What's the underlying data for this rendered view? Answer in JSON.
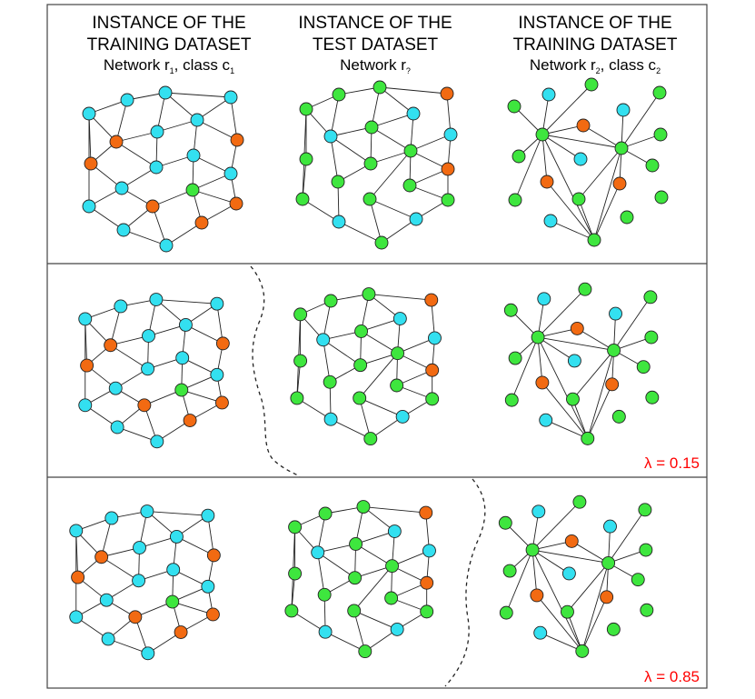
{
  "colors": {
    "cyan": "#33e0f0",
    "orange": "#f26a12",
    "green": "#3ee63e",
    "lambda_text": "#ff0000"
  },
  "headers": [
    {
      "line1": "INSTANCE OF THE",
      "line2": "TRAINING DATASET",
      "line3": "Network r",
      "sub1": "1",
      "mid": ", class c",
      "sub2": "1"
    },
    {
      "line1": "INSTANCE OF THE",
      "line2": "TEST DATASET",
      "line3": "Network r",
      "sub1": "?",
      "mid": "",
      "sub2": ""
    },
    {
      "line1": "INSTANCE OF THE",
      "line2": "TRAINING DATASET",
      "line3": "Network r",
      "sub1": "2",
      "mid": ", class c",
      "sub2": "2"
    }
  ],
  "panels": [
    {
      "name": "original",
      "lambda_label": ""
    },
    {
      "name": "lambda-low",
      "lambda_label": "λ = 0.15"
    },
    {
      "name": "lambda-high",
      "lambda_label": "λ = 0.85"
    }
  ]
}
